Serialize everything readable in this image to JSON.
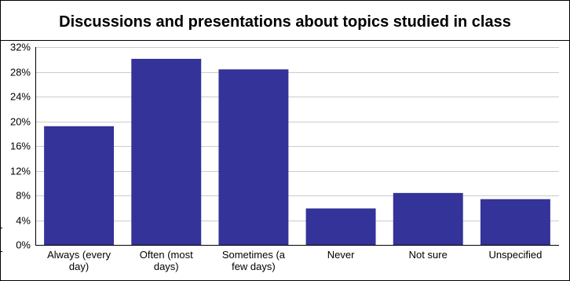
{
  "chart_data": {
    "type": "bar",
    "title": "Discussions and presentations about topics studied in class",
    "categories": [
      [
        "Always (every",
        "day)"
      ],
      [
        "Often (most",
        "days)"
      ],
      [
        "Sometimes (a",
        "few days)"
      ],
      [
        "Never"
      ],
      [
        "Not sure"
      ],
      [
        "Unspecified"
      ]
    ],
    "values": [
      19.2,
      30.1,
      28.4,
      5.9,
      8.4,
      7.4
    ],
    "value_unit": "percent",
    "ylim": [
      0,
      32
    ],
    "yticks": [
      "0%",
      "4%",
      "8%",
      "12%",
      "16%",
      "20%",
      "24%",
      "28%",
      "32%"
    ],
    "xlabel": "",
    "ylabel": "",
    "grid": true,
    "legend": "none",
    "colors": {
      "bar": "#333399",
      "grid": "#cccccc",
      "axis": "#000000"
    }
  }
}
